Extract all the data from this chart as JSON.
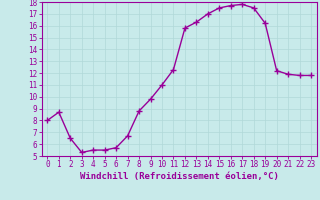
{
  "x": [
    0,
    1,
    2,
    3,
    4,
    5,
    6,
    7,
    8,
    9,
    10,
    11,
    12,
    13,
    14,
    15,
    16,
    17,
    18,
    19,
    20,
    21,
    22,
    23
  ],
  "y": [
    8.0,
    8.7,
    6.5,
    5.3,
    5.5,
    5.5,
    5.7,
    6.7,
    8.8,
    9.8,
    11.0,
    12.3,
    15.8,
    16.3,
    17.0,
    17.5,
    17.7,
    17.8,
    17.5,
    16.2,
    12.2,
    11.9,
    11.8,
    11.8
  ],
  "line_color": "#990099",
  "marker": "+",
  "marker_size": 4,
  "marker_lw": 1.0,
  "line_width": 1.0,
  "bg_color": "#c8eaea",
  "grid_color": "#b0d8d8",
  "xlabel": "Windchill (Refroidissement éolien,°C)",
  "xlim": [
    -0.5,
    23.5
  ],
  "ylim": [
    5,
    18
  ],
  "yticks": [
    5,
    6,
    7,
    8,
    9,
    10,
    11,
    12,
    13,
    14,
    15,
    16,
    17,
    18
  ],
  "xticks": [
    0,
    1,
    2,
    3,
    4,
    5,
    6,
    7,
    8,
    9,
    10,
    11,
    12,
    13,
    14,
    15,
    16,
    17,
    18,
    19,
    20,
    21,
    22,
    23
  ],
  "axis_color": "#990099",
  "tick_color": "#990099",
  "label_fontsize": 6.5,
  "tick_fontsize": 5.5,
  "grid_lw": 0.5
}
